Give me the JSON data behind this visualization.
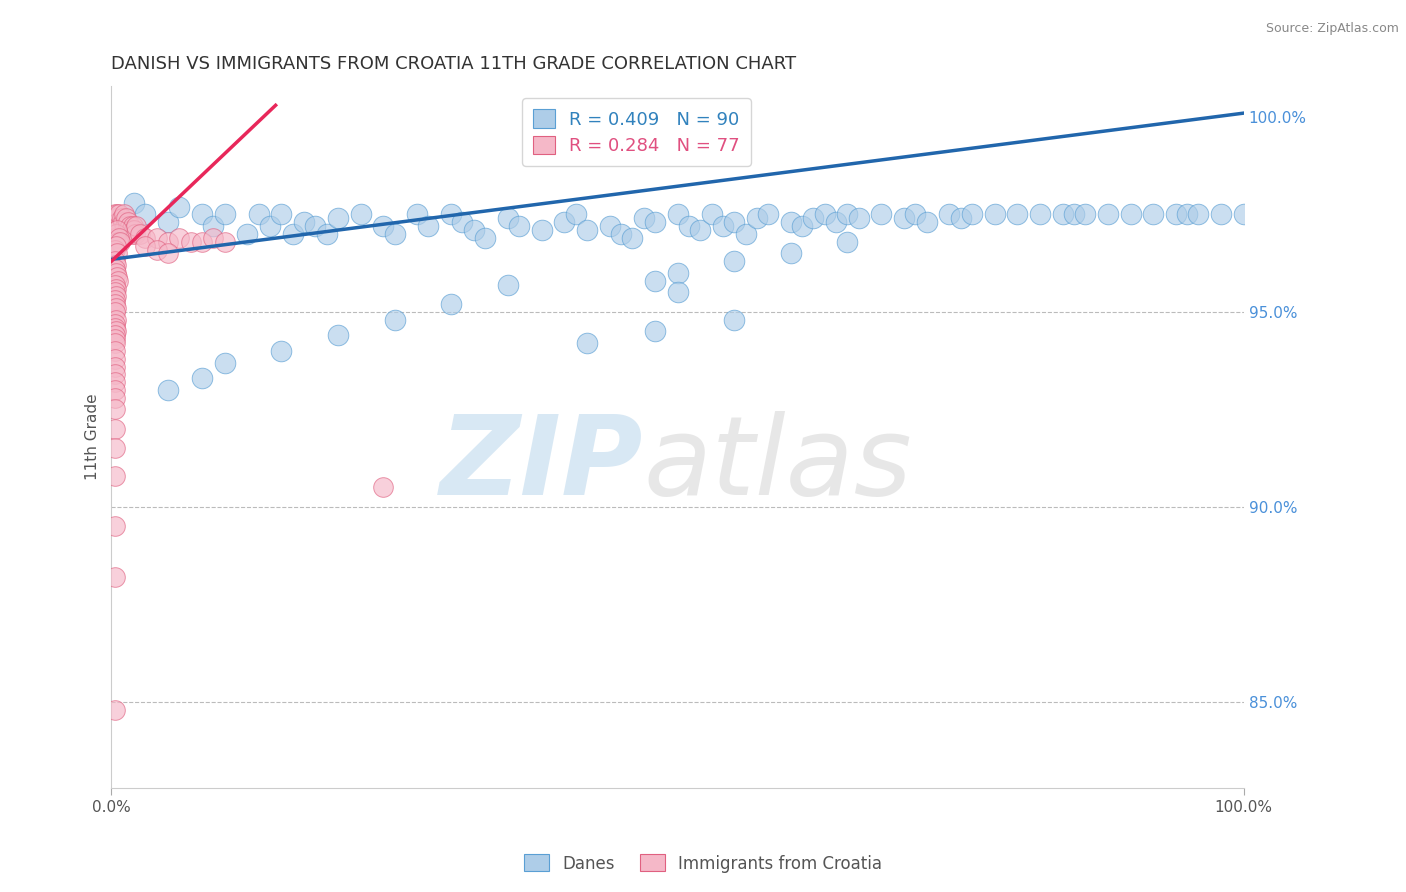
{
  "title": "DANISH VS IMMIGRANTS FROM CROATIA 11TH GRADE CORRELATION CHART",
  "source": "Source: ZipAtlas.com",
  "ylabel": "11th Grade",
  "ylabel_right_ticks": [
    "100.0%",
    "95.0%",
    "90.0%",
    "85.0%"
  ],
  "ylabel_right_vals": [
    1.0,
    0.95,
    0.9,
    0.85
  ],
  "legend_blue_r": "R = 0.409",
  "legend_blue_n": "N = 90",
  "legend_pink_r": "R = 0.284",
  "legend_pink_n": "N = 77",
  "blue_color": "#aecde8",
  "blue_edge": "#5a9fd4",
  "pink_color": "#f5b8c8",
  "pink_edge": "#e06080",
  "trendline_blue": "#2166ac",
  "trendline_pink": "#e8275a",
  "xlim": [
    0.0,
    1.0
  ],
  "ylim": [
    0.828,
    1.008
  ],
  "blue_trend_x": [
    0.0,
    1.0
  ],
  "blue_trend_y": [
    0.9635,
    1.001
  ],
  "pink_trend_x": [
    0.0,
    0.145
  ],
  "pink_trend_y": [
    0.963,
    1.003
  ],
  "danes_x": [
    0.02,
    0.03,
    0.05,
    0.06,
    0.08,
    0.09,
    0.1,
    0.12,
    0.13,
    0.14,
    0.15,
    0.16,
    0.17,
    0.18,
    0.19,
    0.2,
    0.22,
    0.24,
    0.25,
    0.27,
    0.28,
    0.3,
    0.31,
    0.32,
    0.33,
    0.35,
    0.36,
    0.38,
    0.4,
    0.41,
    0.42,
    0.44,
    0.45,
    0.46,
    0.47,
    0.48,
    0.5,
    0.51,
    0.52,
    0.53,
    0.54,
    0.55,
    0.56,
    0.57,
    0.58,
    0.6,
    0.61,
    0.62,
    0.63,
    0.64,
    0.65,
    0.66,
    0.68,
    0.7,
    0.71,
    0.72,
    0.74,
    0.75,
    0.76,
    0.78,
    0.8,
    0.82,
    0.84,
    0.85,
    0.86,
    0.88,
    0.9,
    0.92,
    0.94,
    0.95,
    0.96,
    0.98,
    1.0,
    0.5,
    0.55,
    0.6,
    0.65,
    0.5,
    0.48,
    0.3,
    0.35,
    0.25,
    0.2,
    0.15,
    0.1,
    0.08,
    0.05,
    0.55,
    0.48,
    0.42
  ],
  "danes_y": [
    0.978,
    0.975,
    0.973,
    0.977,
    0.975,
    0.972,
    0.975,
    0.97,
    0.975,
    0.972,
    0.975,
    0.97,
    0.973,
    0.972,
    0.97,
    0.974,
    0.975,
    0.972,
    0.97,
    0.975,
    0.972,
    0.975,
    0.973,
    0.971,
    0.969,
    0.974,
    0.972,
    0.971,
    0.973,
    0.975,
    0.971,
    0.972,
    0.97,
    0.969,
    0.974,
    0.973,
    0.975,
    0.972,
    0.971,
    0.975,
    0.972,
    0.973,
    0.97,
    0.974,
    0.975,
    0.973,
    0.972,
    0.974,
    0.975,
    0.973,
    0.975,
    0.974,
    0.975,
    0.974,
    0.975,
    0.973,
    0.975,
    0.974,
    0.975,
    0.975,
    0.975,
    0.975,
    0.975,
    0.975,
    0.975,
    0.975,
    0.975,
    0.975,
    0.975,
    0.975,
    0.975,
    0.975,
    0.975,
    0.96,
    0.963,
    0.965,
    0.968,
    0.955,
    0.958,
    0.952,
    0.957,
    0.948,
    0.944,
    0.94,
    0.937,
    0.933,
    0.93,
    0.948,
    0.945,
    0.942
  ],
  "immigrants_x": [
    0.003,
    0.004,
    0.005,
    0.006,
    0.007,
    0.008,
    0.009,
    0.01,
    0.011,
    0.012,
    0.013,
    0.014,
    0.015,
    0.016,
    0.017,
    0.018,
    0.019,
    0.02,
    0.021,
    0.022,
    0.003,
    0.004,
    0.005,
    0.006,
    0.007,
    0.008,
    0.003,
    0.004,
    0.005,
    0.003,
    0.004,
    0.003,
    0.004,
    0.005,
    0.006,
    0.003,
    0.004,
    0.003,
    0.004,
    0.003,
    0.003,
    0.004,
    0.003,
    0.004,
    0.003,
    0.003,
    0.004,
    0.003,
    0.003,
    0.003,
    0.003,
    0.003,
    0.003,
    0.003,
    0.003,
    0.003,
    0.003,
    0.003,
    0.025,
    0.03,
    0.04,
    0.05,
    0.06,
    0.07,
    0.08,
    0.09,
    0.1,
    0.03,
    0.04,
    0.05,
    0.003,
    0.003,
    0.003,
    0.003,
    0.003,
    0.24,
    0.003
  ],
  "immigrants_y": [
    0.975,
    0.974,
    0.975,
    0.973,
    0.975,
    0.972,
    0.974,
    0.973,
    0.975,
    0.972,
    0.974,
    0.971,
    0.973,
    0.972,
    0.971,
    0.97,
    0.972,
    0.971,
    0.97,
    0.972,
    0.969,
    0.97,
    0.971,
    0.968,
    0.969,
    0.968,
    0.966,
    0.967,
    0.965,
    0.963,
    0.962,
    0.961,
    0.96,
    0.959,
    0.958,
    0.957,
    0.956,
    0.955,
    0.954,
    0.953,
    0.952,
    0.951,
    0.95,
    0.948,
    0.947,
    0.946,
    0.945,
    0.944,
    0.943,
    0.942,
    0.94,
    0.938,
    0.936,
    0.934,
    0.932,
    0.93,
    0.928,
    0.925,
    0.97,
    0.969,
    0.969,
    0.968,
    0.969,
    0.968,
    0.968,
    0.969,
    0.968,
    0.967,
    0.966,
    0.965,
    0.92,
    0.915,
    0.908,
    0.895,
    0.882,
    0.905,
    0.848
  ]
}
